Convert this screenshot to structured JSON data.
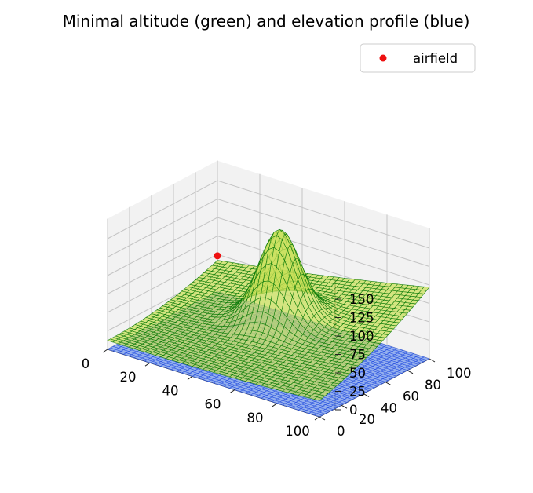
{
  "chart_data": {
    "type": "surface3d",
    "title": "Minimal altitude (green) and elevation profile (blue)",
    "xlabel": "",
    "ylabel": "",
    "zlabel": "",
    "xlim": [
      0,
      100
    ],
    "ylim": [
      0,
      100
    ],
    "zlim": [
      0,
      165
    ],
    "x_ticks": [
      0,
      20,
      40,
      60,
      80,
      100
    ],
    "y_ticks": [
      0,
      20,
      40,
      60,
      80,
      100
    ],
    "z_ticks": [
      0,
      25,
      50,
      75,
      100,
      125,
      150
    ],
    "grid": true,
    "legend_position": "upper-right",
    "legend": [
      {
        "label": "airfield",
        "marker": "circle",
        "color": "#ee1111"
      }
    ],
    "series": [
      {
        "kind": "surface-wireframe",
        "description_color": "blue",
        "face_color": "#7a9ef0",
        "edge_color": "#2d55e0",
        "model": "gaussian hill",
        "peak_z": 55,
        "peak_xy": [
          50,
          55
        ]
      },
      {
        "kind": "surface-wireframe",
        "description_color": "green",
        "face_color": "#c9e05a",
        "edge_color": "#0b7a0b",
        "peak_z": 162,
        "peak_xy": [
          50,
          60
        ]
      }
    ],
    "airfield_point": {
      "x": 0,
      "y": 100,
      "z": 0
    }
  },
  "colors": {
    "pane": "#f2f2f2",
    "pane_dark": "#e6e6e6",
    "grid": "#c4c4c4",
    "blue_face": "#7a9ef0",
    "blue_edge": "#2d55e0",
    "green_face": "#c9e05a",
    "green_edge": "#0b7a0b",
    "airfield": "#ee1111"
  }
}
